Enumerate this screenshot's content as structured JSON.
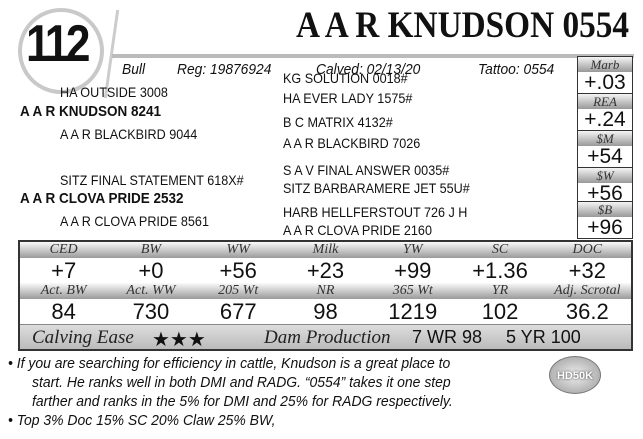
{
  "lot": "112",
  "title": "A A R KNUDSON 0554",
  "info": {
    "type": "Bull",
    "reg": "Reg: 19876924",
    "calved": "Calved: 02/13/20",
    "tattoo": "Tattoo: 0554"
  },
  "pedigree": {
    "sire": "A A R KNUDSON 8241",
    "sire_sire": "HA OUTSIDE 3008",
    "sire_dam": "A A R BLACKBIRD 9044",
    "sss": "KG SOLUTION 0018#",
    "ssd": "HA EVER LADY 1575#",
    "sds": "B C MATRIX 4132#",
    "sdd": "A A R BLACKBIRD 7026",
    "dam": "A A R CLOVA PRIDE 2532",
    "dam_sire": "SITZ FINAL STATEMENT 618X#",
    "dam_dam": "A A R CLOVA PRIDE 8561",
    "dss": "S A V FINAL ANSWER 0035#",
    "dsd": "SITZ BARBARAMERE JET 55U#",
    "dds": "HARB HELLFERSTOUT 726 J H",
    "ddd": "A A R CLOVA PRIDE 2160"
  },
  "side_epds": [
    {
      "label": "Marb",
      "value": "+.03"
    },
    {
      "label": "REA",
      "value": "+.24"
    },
    {
      "label": "$M",
      "value": "+54"
    },
    {
      "label": "$W",
      "value": "+56"
    },
    {
      "label": "$B",
      "value": "+96"
    }
  ],
  "epds": {
    "labels": [
      "CED",
      "BW",
      "WW",
      "Milk",
      "YW",
      "SC",
      "DOC"
    ],
    "values": [
      "+7",
      "+0",
      "+56",
      "+23",
      "+99",
      "+1.36",
      "+32"
    ]
  },
  "actuals": {
    "labels": [
      "Act. BW",
      "Act. WW",
      "205 Wt",
      "NR",
      "365 Wt",
      "YR",
      "Adj. Scrotal"
    ],
    "values": [
      "84",
      "730",
      "677",
      "98",
      "1219",
      "102",
      "36.2"
    ]
  },
  "calving_ease": {
    "label": "Calving Ease",
    "stars": "★★★",
    "rating": 3
  },
  "dam_production": {
    "label": "Dam Production",
    "wr": "7 WR 98",
    "yr": "5 YR 100"
  },
  "notes": [
    "• If you are searching for efficiency in cattle, Knudson is a great place to",
    "start. He ranks well in both DMI and RADG. “0554” takes it one step",
    "farther and ranks in the 5% for DMI and 25% for RADG respectively.",
    "• Top 3% Doc  15% SC  20% Claw  25% BW,"
  ],
  "badge": "HD50K"
}
